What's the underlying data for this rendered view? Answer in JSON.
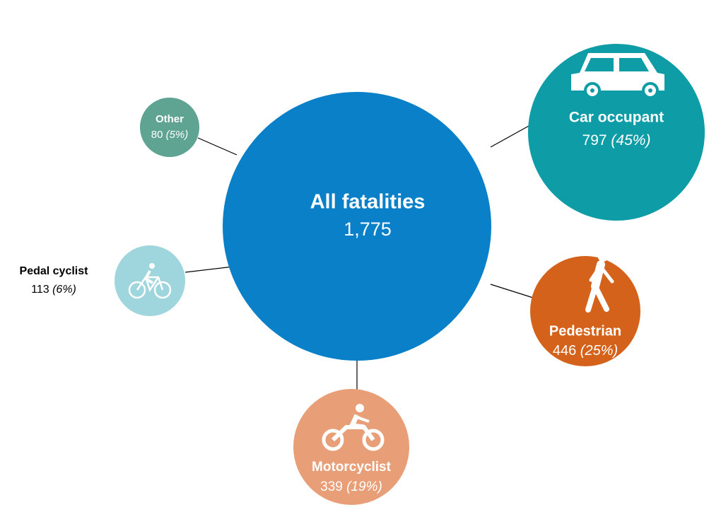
{
  "center": {
    "label": "All fatalities",
    "value": "1,775"
  },
  "nodes": [
    {
      "label": "Car occupant",
      "value": "797",
      "share": "(45%)"
    },
    {
      "label": "Pedestrian",
      "value": "446",
      "share": "(25%)"
    },
    {
      "label": "Motorcyclist",
      "value": "339",
      "share": "(19%)"
    },
    {
      "label": "Pedal cyclist",
      "value": "113",
      "share": "(6%)"
    },
    {
      "label": "Other",
      "value": "80",
      "share": "(5%)"
    }
  ]
}
